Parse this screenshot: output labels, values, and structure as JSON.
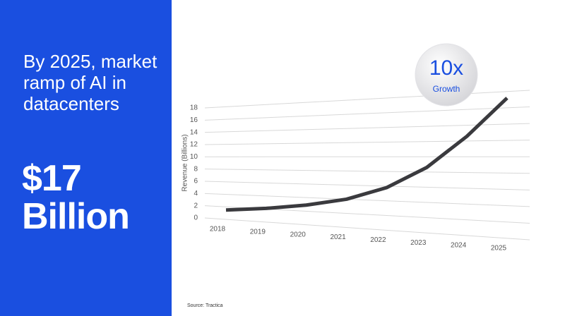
{
  "headline": "By 2025, market ramp of AI in datacenters",
  "highlight": "$17 Billion",
  "badge": {
    "value": "10x",
    "label": "Growth"
  },
  "source": "Source: Tractica",
  "chart_data": {
    "type": "line",
    "y_label": "Revenue (Billions)",
    "categories": [
      "2018",
      "2019",
      "2020",
      "2021",
      "2022",
      "2023",
      "2024",
      "2025"
    ],
    "values": [
      1.5,
      2.1,
      2.9,
      4.0,
      5.8,
      8.6,
      12.6,
      17.2
    ],
    "color": "#3a3a3e",
    "ylim": [
      0,
      18
    ],
    "yticks": [
      0,
      2,
      4,
      6,
      8,
      10,
      12,
      14,
      16,
      18
    ],
    "grid": true
  }
}
